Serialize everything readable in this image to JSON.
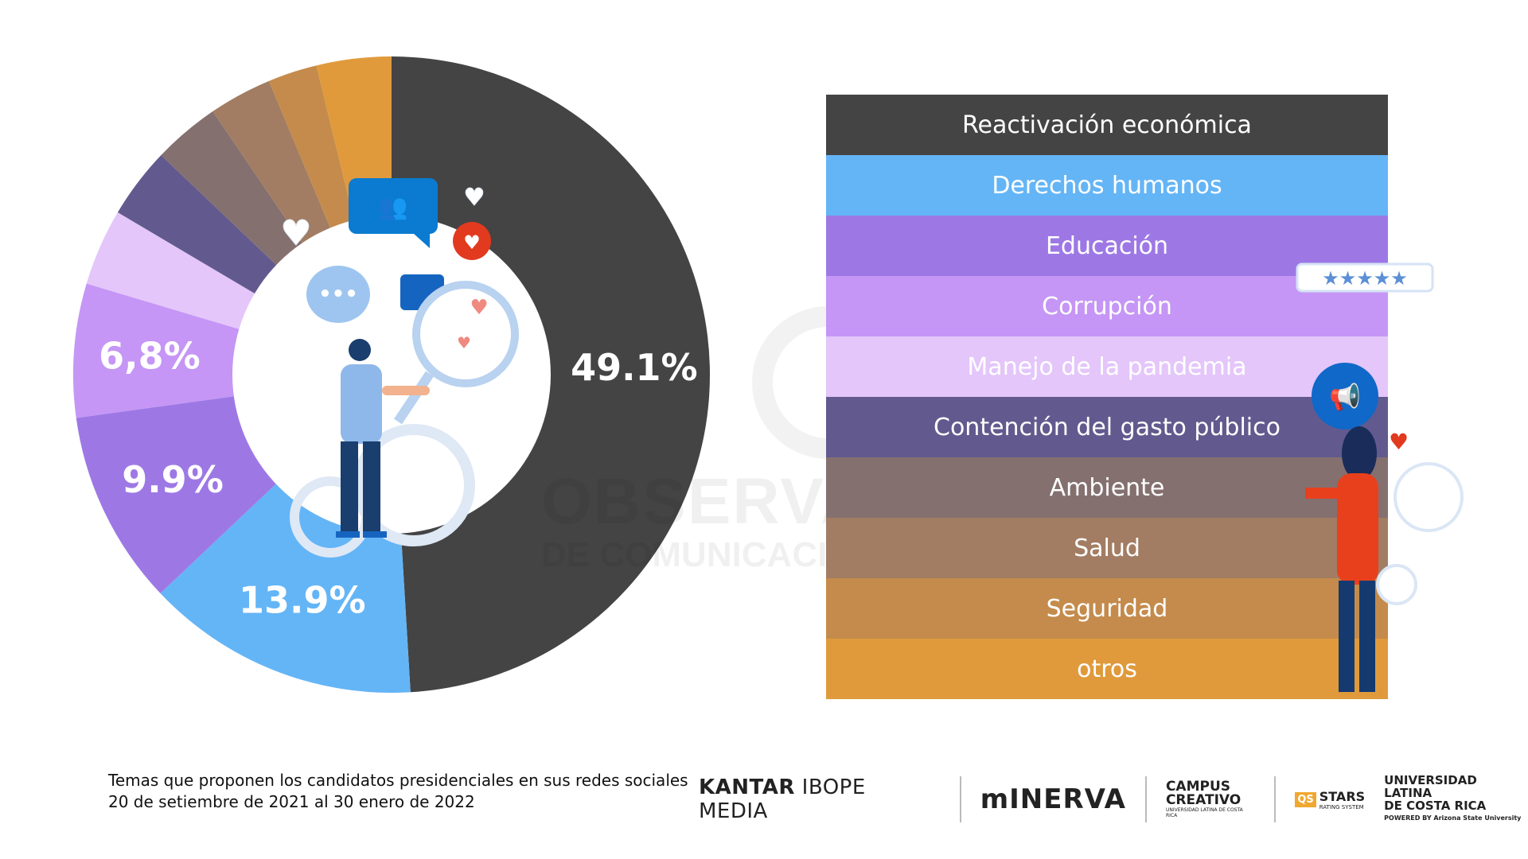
{
  "chart_data": {
    "type": "pie",
    "variant": "donut",
    "title": "Temas que proponen los candidatos presidenciales en sus redes sociales",
    "subtitle": "20 de setiembre de 2021 al 30 enero de 2022",
    "categories": [
      "Reactivación económica",
      "Derechos humanos",
      "Educación",
      "Corrupción",
      "Manejo de la pandemia",
      "Contención del gasto público",
      "Ambiente",
      "Salud",
      "Seguridad",
      "otros"
    ],
    "values": [
      49.1,
      13.9,
      9.9,
      6.8,
      3.9,
      3.6,
      3.4,
      3.2,
      2.5,
      3.8
    ],
    "labels": [
      "49.1%",
      "13.9%",
      "9.9%",
      "6,8%",
      "",
      "",
      "",
      "",
      "",
      ""
    ],
    "colors": [
      "#444444",
      "#64b5f6",
      "#9d78e5",
      "#c596f5",
      "#e4c6fa",
      "#625a8e",
      "#857070",
      "#a27d63",
      "#c48b4c",
      "#e09a3c"
    ],
    "legend_placement": "right",
    "start": "top",
    "direction": "clockwise"
  },
  "caption": {
    "line1": "Temas que proponen los candidatos presidenciales en sus redes sociales",
    "line2": "20 de setiembre de 2021 al 30 enero de 2022"
  },
  "watermark": {
    "line1": "OBSERVATORIO",
    "line2": "DE COMUNICACIÓN DIGITAL"
  },
  "logos": {
    "kantar_bold": "KANTAR",
    "kantar_rest": "IBOPE MEDIA",
    "minerva": "mINERVA",
    "campus1": "CAMPUS",
    "campus2": "CREATIVO",
    "campus_sub": "UNIVERSIDAD LATINA DE COSTA RICA",
    "qs_box": "QS",
    "qs_stars": "STARS",
    "qs_sub": "RATING SYSTEM",
    "ulatina1": "UNIVERSIDAD LATINA",
    "ulatina2": "DE COSTA RICA",
    "ulatina_sub": "POWERED BY Arizona State University"
  }
}
